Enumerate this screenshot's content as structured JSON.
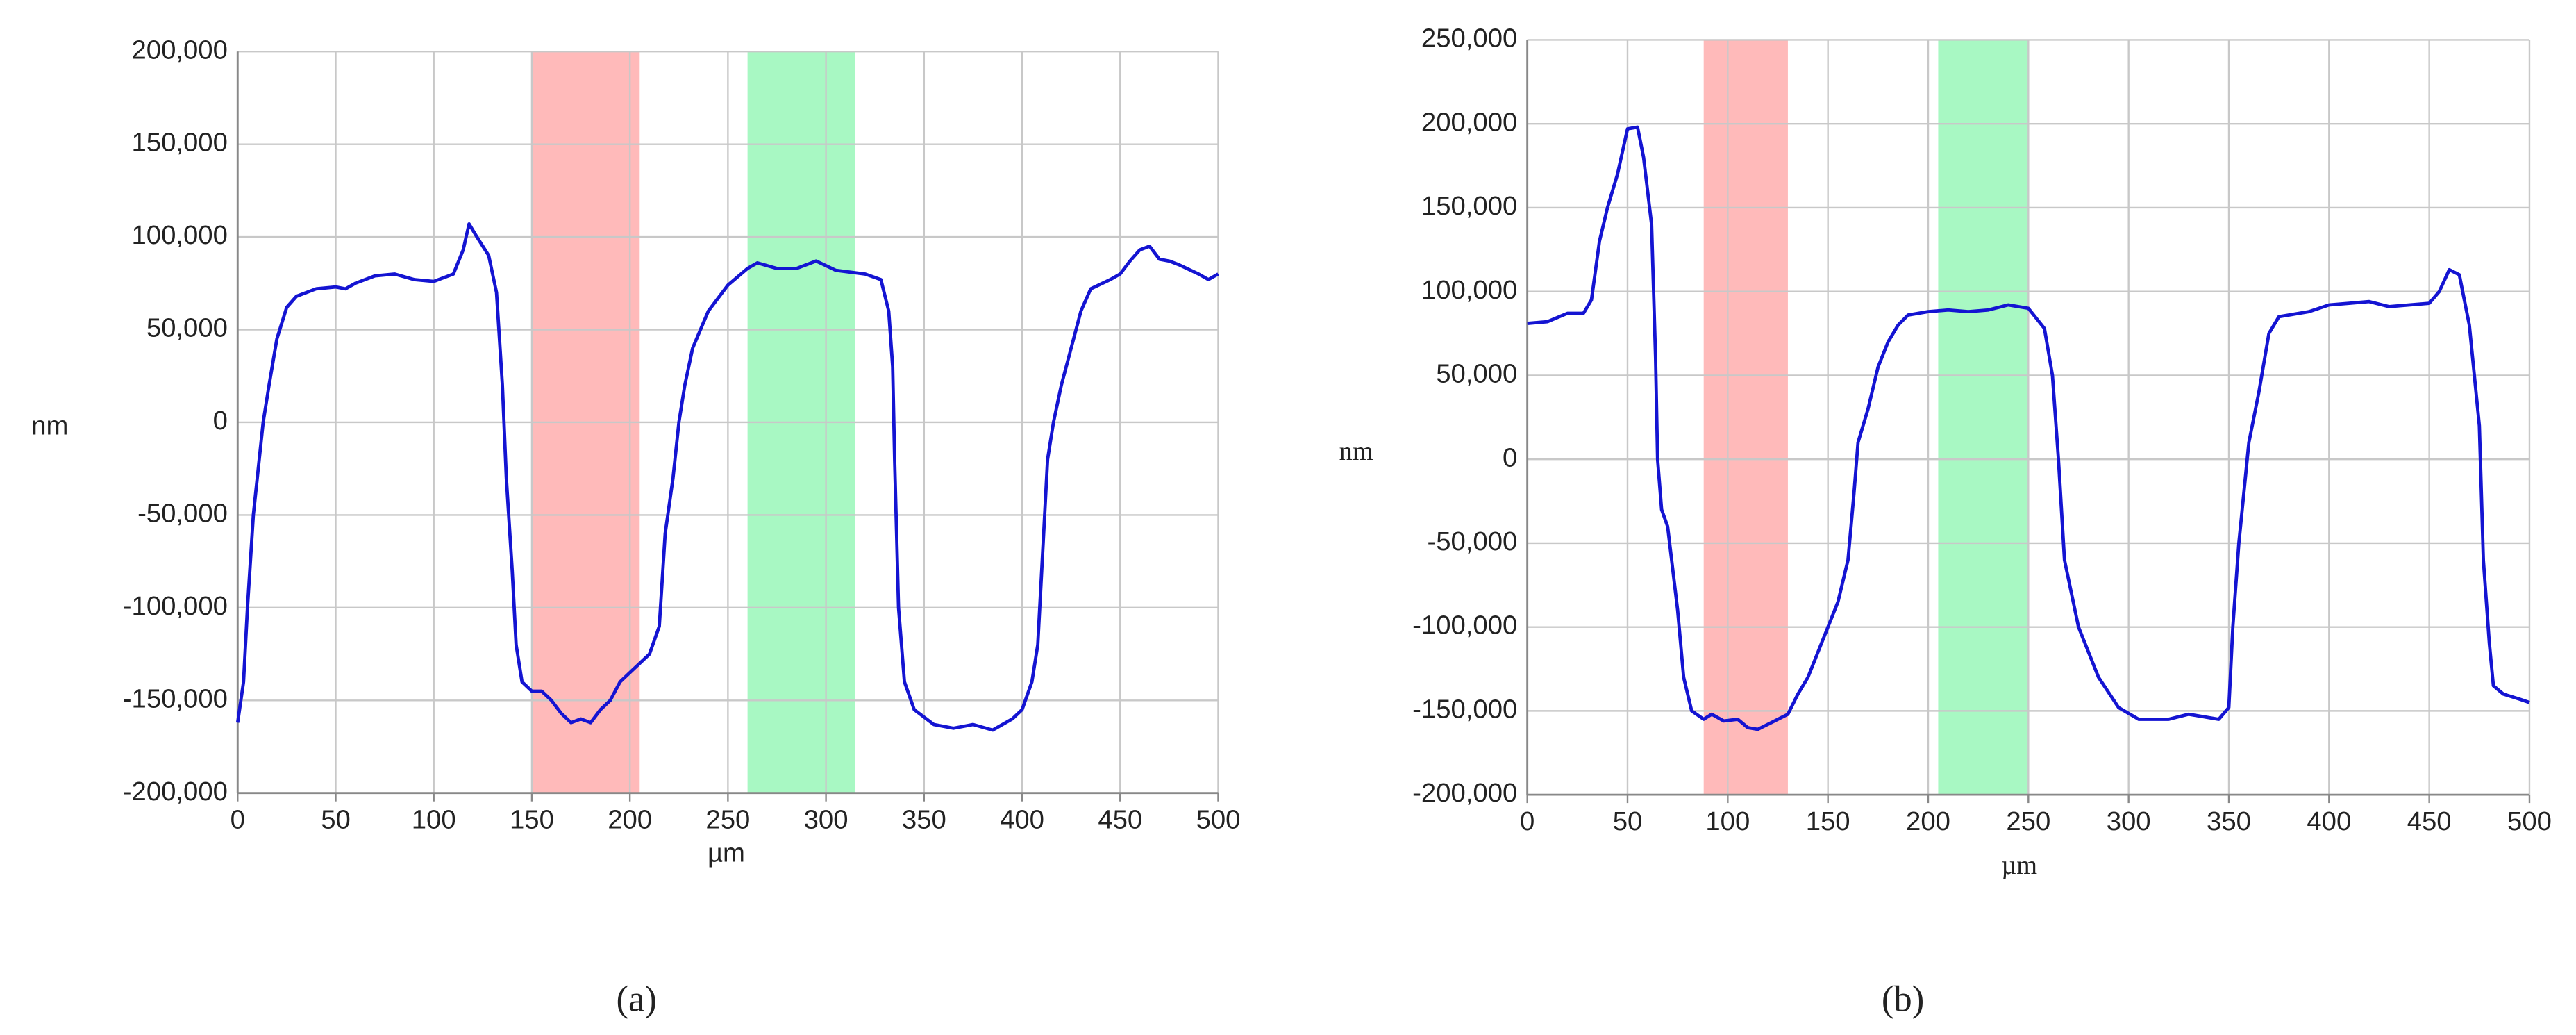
{
  "chart_data": [
    {
      "type": "line",
      "x_label": "µm",
      "y_label": "nm",
      "caption": "(a)",
      "xlim": [
        0,
        500
      ],
      "xticks": [
        0,
        50,
        100,
        150,
        200,
        250,
        300,
        350,
        400,
        450,
        500
      ],
      "ylim": [
        -200000,
        200000
      ],
      "yticks": [
        {
          "value": -200000,
          "label": "-200,000"
        },
        {
          "value": -150000,
          "label": "-150,000"
        },
        {
          "value": -100000,
          "label": "-100,000"
        },
        {
          "value": -50000,
          "label": "-50,000"
        },
        0,
        {
          "value": 50000,
          "label": "50,000"
        },
        {
          "value": 100000,
          "label": "100,000"
        },
        {
          "value": 150000,
          "label": "150,000"
        },
        {
          "value": 200000,
          "label": "200,000"
        }
      ],
      "grid": true,
      "bands": [
        {
          "x0": 150,
          "x1": 205,
          "color": "#ffb3b3"
        },
        {
          "x0": 260,
          "x1": 315,
          "color": "#9ff7bd"
        }
      ],
      "x": [
        0,
        3,
        5,
        8,
        10,
        13,
        16,
        20,
        25,
        30,
        40,
        50,
        55,
        60,
        70,
        80,
        90,
        100,
        110,
        115,
        118,
        122,
        128,
        132,
        135,
        137,
        140,
        142,
        145,
        150,
        155,
        160,
        165,
        170,
        175,
        180,
        185,
        190,
        195,
        200,
        210,
        215,
        218,
        222,
        225,
        228,
        232,
        240,
        250,
        260,
        265,
        275,
        285,
        295,
        305,
        320,
        328,
        332,
        334,
        335,
        337,
        340,
        345,
        355,
        365,
        375,
        385,
        395,
        400,
        405,
        408,
        410,
        413,
        416,
        420,
        425,
        430,
        435,
        445,
        450,
        455,
        460,
        465,
        470,
        475,
        480,
        490,
        495,
        500
      ],
      "series": [
        {
          "color": "#1414d2",
          "values": [
            -162000,
            -140000,
            -100000,
            -50000,
            -30000,
            0,
            20000,
            45000,
            62000,
            68000,
            72000,
            73000,
            72000,
            75000,
            79000,
            80000,
            77000,
            76000,
            80000,
            93000,
            107000,
            100000,
            90000,
            70000,
            20000,
            -30000,
            -80000,
            -120000,
            -140000,
            -145000,
            -145000,
            -150000,
            -157000,
            -162000,
            -160000,
            -162000,
            -155000,
            -150000,
            -140000,
            -135000,
            -125000,
            -110000,
            -60000,
            -30000,
            0,
            20000,
            40000,
            60000,
            74000,
            83000,
            86000,
            83000,
            83000,
            87000,
            82000,
            80000,
            77000,
            60000,
            30000,
            -20000,
            -100000,
            -140000,
            -155000,
            -163000,
            -165000,
            -163000,
            -166000,
            -160000,
            -155000,
            -140000,
            -120000,
            -80000,
            -20000,
            0,
            20000,
            40000,
            60000,
            72000,
            77000,
            80000,
            87000,
            93000,
            95000,
            88000,
            87000,
            85000,
            80000,
            77000,
            80000
          ]
        }
      ]
    },
    {
      "type": "line",
      "x_label": "µm",
      "y_label": "nm",
      "caption": "(b)",
      "xlim": [
        0,
        500
      ],
      "xticks": [
        0,
        50,
        100,
        150,
        200,
        250,
        300,
        350,
        400,
        450,
        500
      ],
      "ylim": [
        -200000,
        250000
      ],
      "yticks": [
        {
          "value": -200000,
          "label": "-200,000"
        },
        {
          "value": -150000,
          "label": "-150,000"
        },
        {
          "value": -100000,
          "label": "-100,000"
        },
        {
          "value": -50000,
          "label": "-50,000"
        },
        0,
        {
          "value": 50000,
          "label": "50,000"
        },
        {
          "value": 100000,
          "label": "100,000"
        },
        {
          "value": 150000,
          "label": "150,000"
        },
        {
          "value": 200000,
          "label": "200,000"
        },
        {
          "value": 250000,
          "label": "250,000"
        }
      ],
      "grid": true,
      "bands": [
        {
          "x0": 88,
          "x1": 130,
          "color": "#ffb3b3"
        },
        {
          "x0": 205,
          "x1": 250,
          "color": "#9ff7bd"
        }
      ],
      "x": [
        0,
        10,
        20,
        28,
        32,
        36,
        40,
        45,
        50,
        55,
        58,
        62,
        64,
        65,
        67,
        70,
        72,
        75,
        78,
        82,
        88,
        92,
        98,
        105,
        110,
        115,
        120,
        125,
        130,
        135,
        140,
        145,
        150,
        155,
        160,
        163,
        165,
        170,
        175,
        180,
        185,
        190,
        200,
        210,
        220,
        230,
        240,
        250,
        258,
        262,
        265,
        268,
        275,
        285,
        295,
        305,
        320,
        330,
        345,
        350,
        352,
        355,
        360,
        365,
        370,
        375,
        390,
        400,
        410,
        420,
        430,
        440,
        450,
        455,
        460,
        465,
        470,
        475,
        477,
        480,
        482,
        487,
        495,
        500
      ],
      "series": [
        {
          "color": "#1414d2",
          "values": [
            81000,
            82000,
            87000,
            87000,
            95000,
            130000,
            150000,
            170000,
            197000,
            198000,
            180000,
            140000,
            60000,
            0,
            -30000,
            -40000,
            -60000,
            -90000,
            -130000,
            -150000,
            -155000,
            -152000,
            -156000,
            -155000,
            -160000,
            -161000,
            -158000,
            -155000,
            -152000,
            -140000,
            -130000,
            -115000,
            -100000,
            -85000,
            -60000,
            -20000,
            10000,
            30000,
            55000,
            70000,
            80000,
            86000,
            88000,
            89000,
            88000,
            89000,
            92000,
            90000,
            78000,
            50000,
            0,
            -60000,
            -100000,
            -130000,
            -148000,
            -155000,
            -155000,
            -152000,
            -155000,
            -148000,
            -100000,
            -50000,
            10000,
            40000,
            75000,
            85000,
            88000,
            92000,
            93000,
            94000,
            91000,
            92000,
            93000,
            100000,
            113000,
            110000,
            80000,
            20000,
            -60000,
            -110000,
            -135000,
            -140000,
            -143000,
            -145000
          ]
        }
      ]
    }
  ]
}
